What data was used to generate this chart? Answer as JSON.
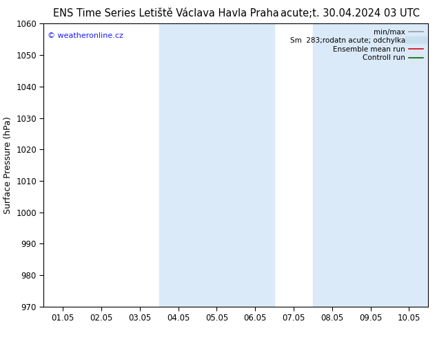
{
  "title_left": "ENS Time Series Letiště Václava Havla Praha",
  "title_right": "acute;t. 30.04.2024 03 UTC",
  "ylabel": "Surface Pressure (hPa)",
  "ylim": [
    970,
    1060
  ],
  "yticks": [
    970,
    980,
    990,
    1000,
    1010,
    1020,
    1030,
    1040,
    1050,
    1060
  ],
  "xtick_labels": [
    "01.05",
    "02.05",
    "03.05",
    "04.05",
    "05.05",
    "06.05",
    "07.05",
    "08.05",
    "09.05",
    "10.05"
  ],
  "shade_bands": [
    {
      "xstart": 3,
      "xend": 5
    },
    {
      "xstart": 7,
      "xend": 9
    }
  ],
  "shade_color": "#dbeaf8",
  "watermark_text": "© weatheronline.cz",
  "watermark_color": "#1a1aff",
  "legend_entries": [
    {
      "label": "min/max",
      "color": "#999999",
      "lw": 1.2,
      "type": "hline"
    },
    {
      "label": "Sm  283;rodatn acute; odchylka",
      "color": "#c8dff0",
      "lw": 8,
      "type": "hline"
    },
    {
      "label": "Ensemble mean run",
      "color": "#dd0000",
      "lw": 1.2,
      "type": "hline"
    },
    {
      "label": "Controll run",
      "color": "#006600",
      "lw": 1.2,
      "type": "hline"
    }
  ],
  "bg_color": "#ffffff",
  "spine_color": "#000000",
  "tick_label_fontsize": 8.5,
  "title_fontsize": 10.5,
  "ylabel_fontsize": 9
}
